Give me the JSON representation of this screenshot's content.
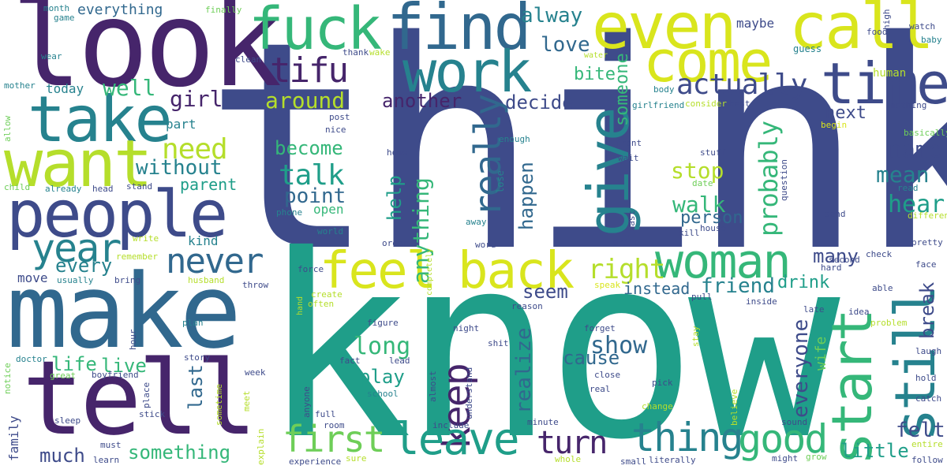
{
  "palette": {
    "dark_purple": "#46256b",
    "indigo": "#3e4b8a",
    "blue": "#31688e",
    "teal": "#26828e",
    "green_teal": "#1f9e89",
    "green": "#35b779",
    "light_green": "#6ece58",
    "lime": "#b5de2b",
    "yellow": "#d9e51d"
  },
  "words": {
    "think": "think",
    "know": "know",
    "look": "look",
    "make": "make",
    "tell": "tell",
    "people": "people",
    "take": "take",
    "want": "want",
    "fuck": "fuck",
    "find": "find",
    "even": "even",
    "call": "call",
    "come": "come",
    "work": "work",
    "time": "time",
    "give": "give",
    "woman": "woman",
    "feel": "feel",
    "back": "back",
    "start": "start",
    "still": "still",
    "keep": "keep",
    "leave": "leave",
    "first": "first",
    "thing": "thing",
    "good": "good",
    "turn": "turn",
    "year": "year",
    "never": "never",
    "tifu": "tifu",
    "actually": "actually",
    "really": "really",
    "probably": "probably",
    "right": "right",
    "need": "need",
    "talk": "talk",
    "well": "well",
    "girl": "girl",
    "around": "around",
    "another": "another",
    "decide": "decide",
    "alway": "alway",
    "love": "love",
    "someone": "someone",
    "bite": "bite",
    "become": "become",
    "without": "without",
    "point": "point",
    "parent": "parent",
    "stop": "stop",
    "walk": "walk",
    "person": "person",
    "anything": "anything",
    "help": "help",
    "happen": "happen",
    "name": "name",
    "mean": "mean",
    "hear": "hear",
    "many": "many",
    "friend": "friend",
    "every": "every",
    "seem": "seem",
    "instead": "instead",
    "drink": "drink",
    "break": "break",
    "everyone": "everyone",
    "felt": "felt",
    "show": "show",
    "cause": "cause",
    "realize": "realize",
    "long": "long",
    "play": "play",
    "life": "life",
    "live": "live",
    "last": "last",
    "much": "much",
    "something": "something",
    "little": "little",
    "next": "next",
    "everything": "everything",
    "today": "today",
    "part": "part",
    "kind": "kind",
    "open": "open",
    "move": "move",
    "maybe": "maybe",
    "guess": "guess",
    "human": "human",
    "wife": "wife",
    "month": "month",
    "game": "game",
    "finally": "finally",
    "food": "food",
    "watch": "watch",
    "high": "high",
    "baby": "baby",
    "water": "water",
    "wake": "wake",
    "thank": "thank",
    "clean": "clean",
    "wear": "wear",
    "mother": "mother",
    "body": "body",
    "girlfriend": "girlfriend",
    "consider": "consider",
    "best": "best",
    "nothing": "nothing",
    "begin": "begin",
    "basically": "basically",
    "post": "post",
    "nice": "nice",
    "enough": "enough",
    "front": "front",
    "home": "home",
    "lose": "lose",
    "stuff": "stuff",
    "wait": "wait",
    "date": "date",
    "question": "question",
    "read": "read",
    "allow": "allow",
    "child": "child",
    "already": "already",
    "head": "head",
    "stand": "stand",
    "phone": "phone",
    "least": "least",
    "send": "send",
    "different": "different",
    "world": "world",
    "away": "away",
    "kill": "kill",
    "house": "house",
    "write": "write",
    "order": "order",
    "word": "word",
    "drive": "drive",
    "second": "second",
    "pretty": "pretty",
    "remember": "remember",
    "usually": "usually",
    "bring": "bring",
    "husband": "husband",
    "throw": "throw",
    "force": "force",
    "completely": "completely",
    "check": "check",
    "hard": "hard",
    "face": "face",
    "create": "create",
    "speak": "speak",
    "able": "able",
    "often": "often",
    "reason": "reason",
    "pull": "pull",
    "inside": "inside",
    "late": "late",
    "idea": "idea",
    "plan": "plan",
    "hand": "hand",
    "figure": "figure",
    "night": "night",
    "forget": "forget",
    "shit": "shit",
    "problem": "problem",
    "stay": "stay",
    "hour": "hour",
    "laugh": "laugh",
    "doctor": "doctor",
    "story": "story",
    "fact": "fact",
    "lead": "lead",
    "almost": "almost",
    "understand": "understand",
    "close": "close",
    "hold": "hold",
    "notice": "notice",
    "great": "great",
    "boyfriend": "boyfriend",
    "week": "week",
    "real": "real",
    "pick": "pick",
    "place": "place",
    "school": "school",
    "believe": "believe",
    "catch": "catch",
    "sometime": "sometime",
    "meet": "meet",
    "anyone": "anyone",
    "change": "change",
    "sleep": "sleep",
    "stick": "stick",
    "full": "full",
    "minute": "minute",
    "include": "include",
    "sound": "sound",
    "entire": "entire",
    "family": "family",
    "must": "must",
    "room": "room",
    "explain": "explain",
    "sure": "sure",
    "whole": "whole",
    "might": "might",
    "grow": "grow",
    "learn": "learn",
    "experience": "experience",
    "small": "small",
    "literally": "literally",
    "follow": "follow"
  }
}
